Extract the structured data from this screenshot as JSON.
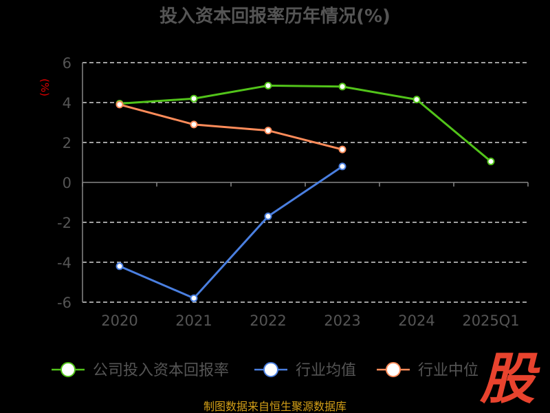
{
  "colors": {
    "company": "#52c41a",
    "average": "#4a7fe0",
    "median": "#ff8c5a",
    "text": "#555555",
    "ylabel": "#e00000",
    "source": "#d4a017",
    "logo": "#e8432e"
  },
  "logo_text": "股",
  "source_text": "制图数据来自恒生聚源数据库",
  "chart_data": {
    "type": "line",
    "title": "投入资本回报率历年情况(%)",
    "ylabel": "(%)",
    "xlabel": "",
    "categories": [
      "2020",
      "2021",
      "2022",
      "2023",
      "2024",
      "2025Q1"
    ],
    "ylim": [
      -6,
      6
    ],
    "yticks": [
      6,
      4,
      2,
      0,
      -2,
      -4,
      -6
    ],
    "grid": true,
    "legend_position": "bottom",
    "series": [
      {
        "name": "公司投入资本回报率",
        "color": "#52c41a",
        "values": [
          3.95,
          4.2,
          4.85,
          4.8,
          4.15,
          1.05
        ]
      },
      {
        "name": "行业均值",
        "color": "#4a7fe0",
        "values": [
          -4.2,
          -5.8,
          -1.7,
          0.8,
          null,
          null
        ]
      },
      {
        "name": "行业中位",
        "color": "#ff8c5a",
        "values": [
          3.9,
          2.9,
          2.6,
          1.65,
          null,
          null
        ]
      }
    ]
  }
}
